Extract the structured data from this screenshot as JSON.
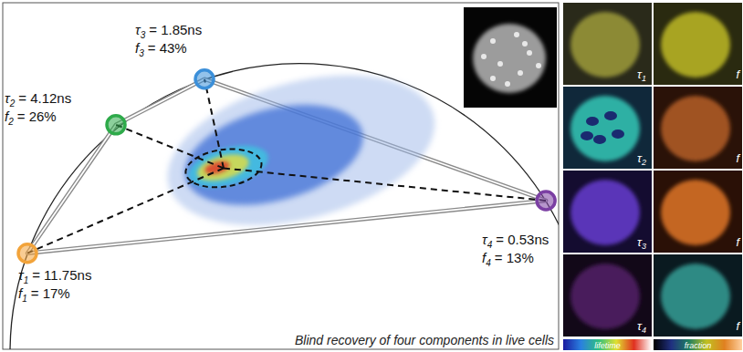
{
  "chart_data": {
    "type": "phasor",
    "annotation": "Blind recovery of four components in live cells",
    "xlim": [
      -0.0126,
      0.9479
    ],
    "ylim": [
      0.006,
      0.605
    ],
    "tick_labels": false,
    "grid": false,
    "components": [
      {
        "symbol": "τ",
        "index": "1",
        "tau": {
          "value": 11.75,
          "label": "= 11.75ns"
        },
        "fraction_symbol": "f",
        "fraction": {
          "value": 17,
          "label": "= 17%"
        },
        "g": 0.03,
        "s": 0.172,
        "color": "#f2a33a"
      },
      {
        "symbol": "τ",
        "index": "2",
        "tau": {
          "value": 4.12,
          "label": "= 4.12ns"
        },
        "fraction_symbol": "f",
        "fraction": {
          "value": 26,
          "label": "= 26%"
        },
        "g": 0.183,
        "s": 0.394,
        "color": "#2eaa4a"
      },
      {
        "symbol": "τ",
        "index": "3",
        "tau": {
          "value": 1.85,
          "label": "= 1.85ns"
        },
        "fraction_symbol": "f",
        "fraction": {
          "value": 43,
          "label": "= 43%"
        },
        "g": 0.336,
        "s": 0.473,
        "color": "#3b8fd9"
      },
      {
        "symbol": "τ",
        "index": "4",
        "tau": {
          "value": 0.53,
          "label": "= 0.53ns"
        },
        "fraction_symbol": "f",
        "fraction": {
          "value": 13,
          "label": "= 13%"
        },
        "g": 0.926,
        "s": 0.263,
        "color": "#7b3fa3"
      }
    ],
    "cluster": {
      "g": 0.369,
      "s": 0.319,
      "rg": 0.066,
      "rs": 0.032
    },
    "cloud": [
      {
        "g": 0.503,
        "s": 0.35,
        "rg": 0.237,
        "rs": 0.118,
        "color": "#9db8ea"
      },
      {
        "g": 0.456,
        "s": 0.342,
        "rg": 0.158,
        "rs": 0.079,
        "color": "#3d6fd6"
      },
      {
        "g": 0.377,
        "s": 0.322,
        "rg": 0.071,
        "rs": 0.032,
        "color": "#38c8e0"
      },
      {
        "g": 0.368,
        "s": 0.32,
        "rg": 0.046,
        "rs": 0.02,
        "color": "#f2e030"
      },
      {
        "g": 0.358,
        "s": 0.32,
        "rg": 0.022,
        "rs": 0.01,
        "color": "#e02020"
      }
    ],
    "panels": [
      {
        "symbol": "τ",
        "index": "1",
        "fraction_symbol": "f"
      },
      {
        "symbol": "τ",
        "index": "2",
        "fraction_symbol": "f"
      },
      {
        "symbol": "τ",
        "index": "3",
        "fraction_symbol": "f"
      },
      {
        "symbol": "τ",
        "index": "4",
        "fraction_symbol": "f"
      }
    ],
    "colorbars": [
      "lifetime",
      "fraction"
    ]
  }
}
